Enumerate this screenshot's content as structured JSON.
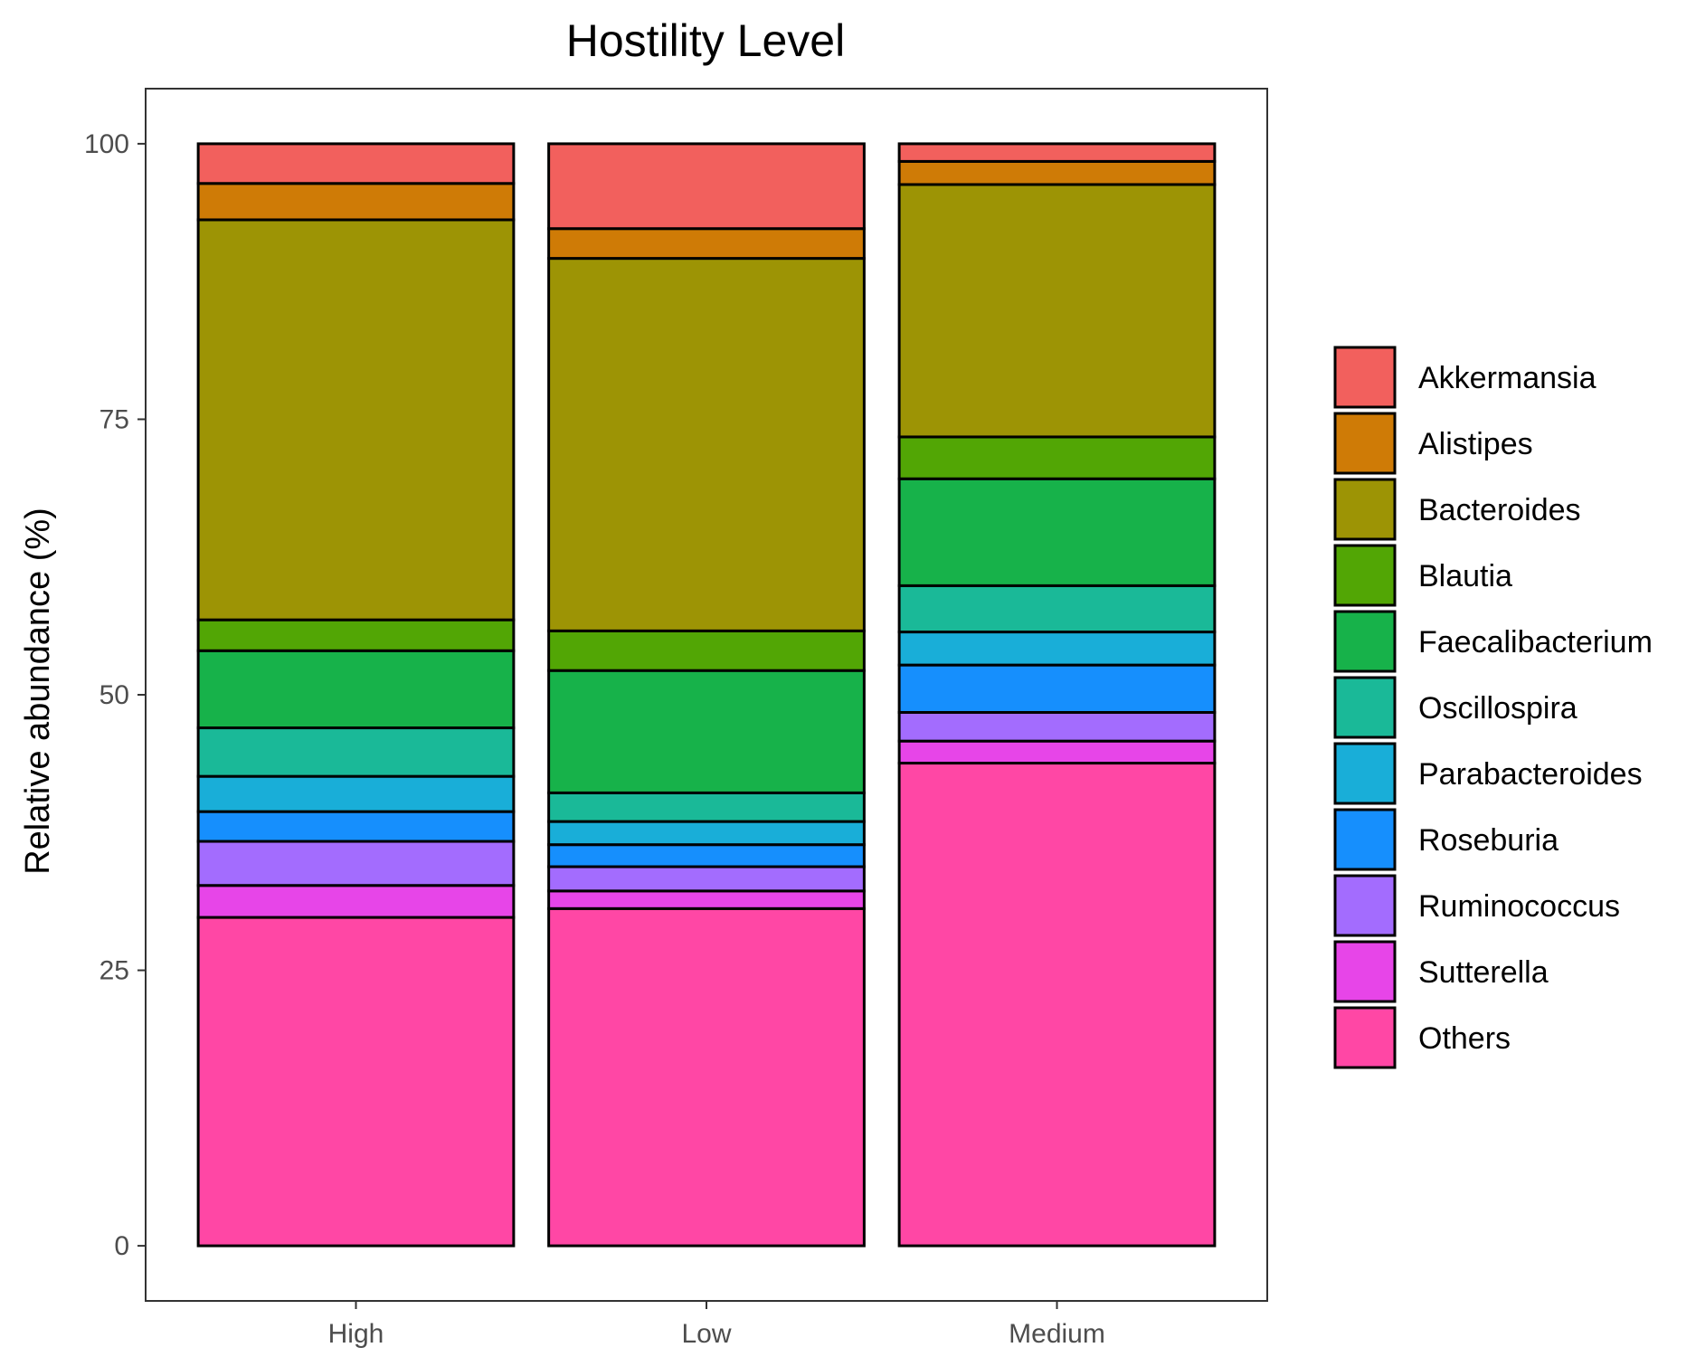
{
  "chart_data": {
    "type": "bar",
    "stacked": true,
    "title": "Hostility Level",
    "xlabel": "",
    "ylabel": "Relative abundance (%)",
    "ylim": [
      -5,
      105
    ],
    "yticks": [
      0,
      25,
      50,
      75,
      100
    ],
    "categories": [
      "High",
      "Low",
      "Medium"
    ],
    "grid": false,
    "legend_position": "right",
    "series": [
      {
        "name": "Others",
        "color": "#FF47A5",
        "values": [
          29.8,
          30.6,
          43.8
        ]
      },
      {
        "name": "Sutterella",
        "color": "#E745E8",
        "values": [
          2.9,
          1.6,
          2.0
        ]
      },
      {
        "name": "Ruminococcus",
        "color": "#A36CFE",
        "values": [
          4.0,
          2.2,
          2.6
        ]
      },
      {
        "name": "Roseburia",
        "color": "#168FFD",
        "values": [
          2.7,
          2.0,
          4.3
        ]
      },
      {
        "name": "Parabacteroides",
        "color": "#19AED8",
        "values": [
          3.2,
          2.1,
          3.0
        ]
      },
      {
        "name": "Oscillospira",
        "color": "#1AB998",
        "values": [
          4.4,
          2.6,
          4.2
        ]
      },
      {
        "name": "Faecalibacterium",
        "color": "#17B24A",
        "values": [
          7.0,
          11.1,
          9.7
        ]
      },
      {
        "name": "Blautia",
        "color": "#52A605",
        "values": [
          2.8,
          3.6,
          3.8
        ]
      },
      {
        "name": "Bacteroides",
        "color": "#9D9405",
        "values": [
          36.3,
          33.8,
          22.9
        ]
      },
      {
        "name": "Alistipes",
        "color": "#CF7B06",
        "values": [
          3.3,
          2.7,
          2.1
        ]
      },
      {
        "name": "Akkermansia",
        "color": "#F2605D",
        "values": [
          3.6,
          7.7,
          1.6
        ]
      }
    ]
  }
}
